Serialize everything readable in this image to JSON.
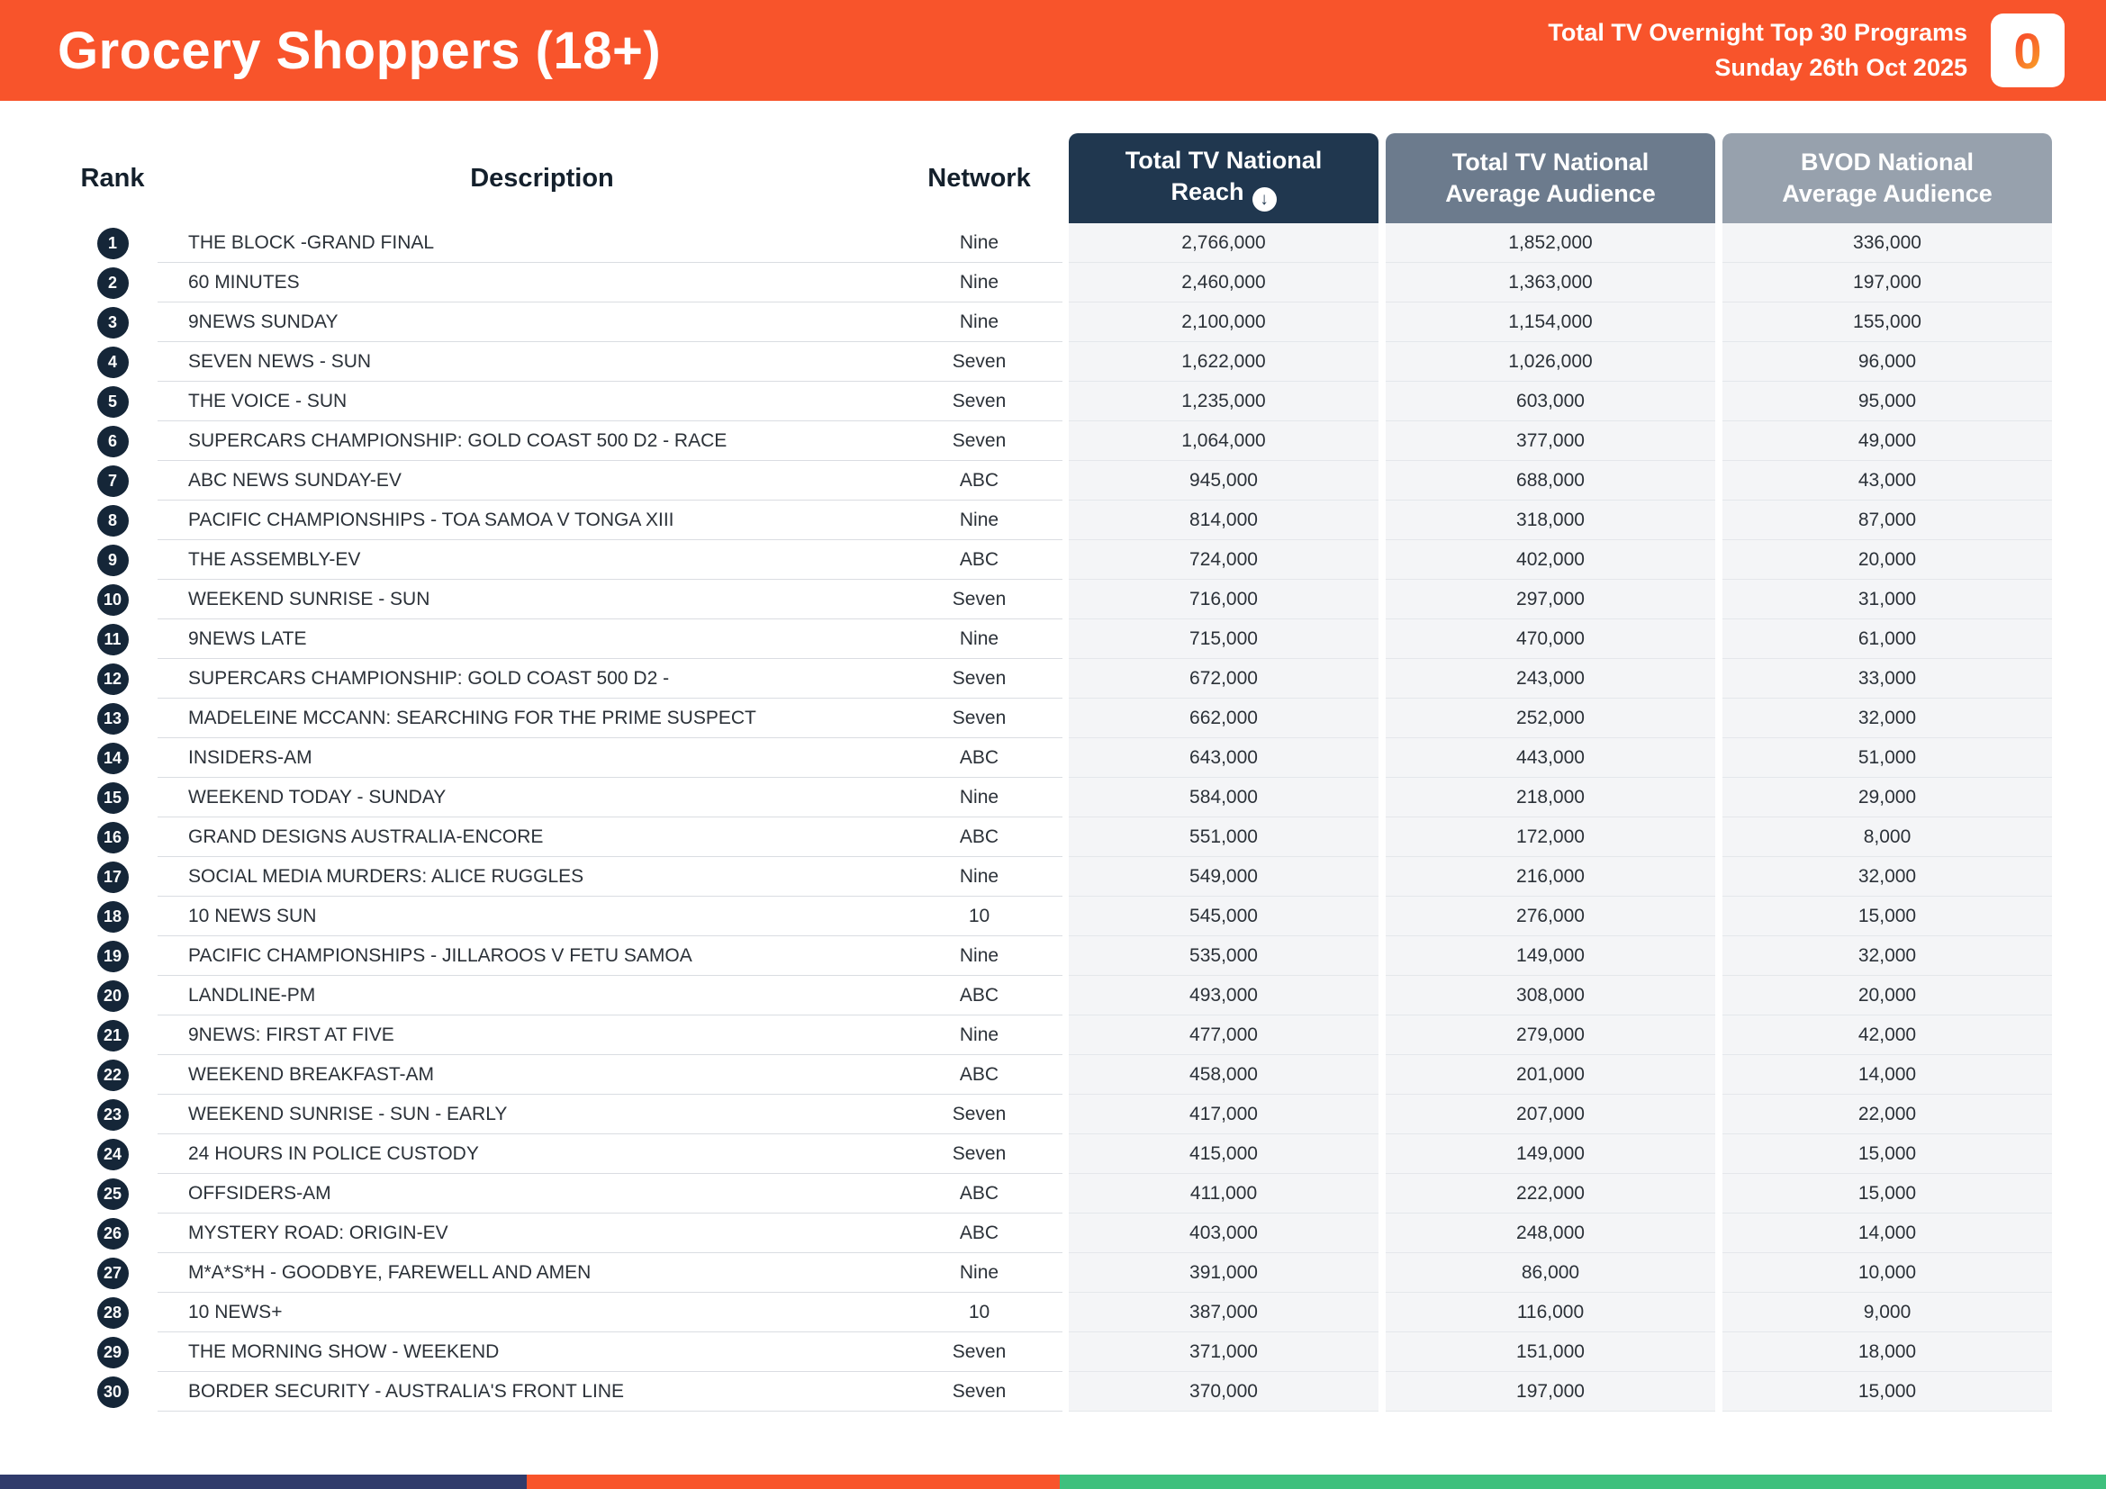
{
  "header": {
    "title": "Grocery Shoppers (18+)",
    "report_title": "Total TV Overnight Top 30 Programs",
    "report_date": "Sunday 26th Oct 2025",
    "logo_glyph": "0"
  },
  "colors": {
    "header_bg": "#F8542B",
    "reach_header_bg": "#20374F",
    "avg_header_bg": "#6C7B8D",
    "bvod_header_bg": "#97A1AD",
    "rank_badge_bg": "#152638",
    "numeric_col_bg": "#F4F5F7",
    "footer_navy": "#303B6B",
    "footer_orange": "#F8542B",
    "footer_green": "#3EC07D"
  },
  "table": {
    "headers": {
      "rank": "Rank",
      "description": "Description",
      "network": "Network",
      "reach": "Total TV National Reach",
      "avg": "Total TV National Average Audience",
      "bvod": "BVOD National Average Audience"
    },
    "sort": {
      "column": "reach",
      "direction": "descending",
      "icon": "↓"
    },
    "rows": [
      {
        "rank": "1",
        "description": "THE BLOCK -GRAND FINAL",
        "network": "Nine",
        "reach": "2,766,000",
        "avg": "1,852,000",
        "bvod": "336,000"
      },
      {
        "rank": "2",
        "description": "60 MINUTES",
        "network": "Nine",
        "reach": "2,460,000",
        "avg": "1,363,000",
        "bvod": "197,000"
      },
      {
        "rank": "3",
        "description": "9NEWS SUNDAY",
        "network": "Nine",
        "reach": "2,100,000",
        "avg": "1,154,000",
        "bvod": "155,000"
      },
      {
        "rank": "4",
        "description": "SEVEN NEWS - SUN",
        "network": "Seven",
        "reach": "1,622,000",
        "avg": "1,026,000",
        "bvod": "96,000"
      },
      {
        "rank": "5",
        "description": "THE VOICE - SUN",
        "network": "Seven",
        "reach": "1,235,000",
        "avg": "603,000",
        "bvod": "95,000"
      },
      {
        "rank": "6",
        "description": "SUPERCARS CHAMPIONSHIP: GOLD COAST 500 D2 - RACE",
        "network": "Seven",
        "reach": "1,064,000",
        "avg": "377,000",
        "bvod": "49,000"
      },
      {
        "rank": "7",
        "description": "ABC NEWS SUNDAY-EV",
        "network": "ABC",
        "reach": "945,000",
        "avg": "688,000",
        "bvod": "43,000"
      },
      {
        "rank": "8",
        "description": "PACIFIC CHAMPIONSHIPS - TOA SAMOA V TONGA XIII",
        "network": "Nine",
        "reach": "814,000",
        "avg": "318,000",
        "bvod": "87,000"
      },
      {
        "rank": "9",
        "description": "THE ASSEMBLY-EV",
        "network": "ABC",
        "reach": "724,000",
        "avg": "402,000",
        "bvod": "20,000"
      },
      {
        "rank": "10",
        "description": "WEEKEND SUNRISE - SUN",
        "network": "Seven",
        "reach": "716,000",
        "avg": "297,000",
        "bvod": "31,000"
      },
      {
        "rank": "11",
        "description": "9NEWS LATE",
        "network": "Nine",
        "reach": "715,000",
        "avg": "470,000",
        "bvod": "61,000"
      },
      {
        "rank": "12",
        "description": "SUPERCARS CHAMPIONSHIP: GOLD COAST 500 D2 -",
        "network": "Seven",
        "reach": "672,000",
        "avg": "243,000",
        "bvod": "33,000"
      },
      {
        "rank": "13",
        "description": "MADELEINE MCCANN: SEARCHING FOR THE PRIME SUSPECT",
        "network": "Seven",
        "reach": "662,000",
        "avg": "252,000",
        "bvod": "32,000"
      },
      {
        "rank": "14",
        "description": "INSIDERS-AM",
        "network": "ABC",
        "reach": "643,000",
        "avg": "443,000",
        "bvod": "51,000"
      },
      {
        "rank": "15",
        "description": "WEEKEND TODAY - SUNDAY",
        "network": "Nine",
        "reach": "584,000",
        "avg": "218,000",
        "bvod": "29,000"
      },
      {
        "rank": "16",
        "description": "GRAND DESIGNS AUSTRALIA-ENCORE",
        "network": "ABC",
        "reach": "551,000",
        "avg": "172,000",
        "bvod": "8,000"
      },
      {
        "rank": "17",
        "description": "SOCIAL MEDIA MURDERS:  ALICE RUGGLES",
        "network": "Nine",
        "reach": "549,000",
        "avg": "216,000",
        "bvod": "32,000"
      },
      {
        "rank": "18",
        "description": "10 NEWS SUN",
        "network": "10",
        "reach": "545,000",
        "avg": "276,000",
        "bvod": "15,000"
      },
      {
        "rank": "19",
        "description": "PACIFIC CHAMPIONSHIPS - JILLAROOS V FETU SAMOA",
        "network": "Nine",
        "reach": "535,000",
        "avg": "149,000",
        "bvod": "32,000"
      },
      {
        "rank": "20",
        "description": "LANDLINE-PM",
        "network": "ABC",
        "reach": "493,000",
        "avg": "308,000",
        "bvod": "20,000"
      },
      {
        "rank": "21",
        "description": "9NEWS: FIRST AT FIVE",
        "network": "Nine",
        "reach": "477,000",
        "avg": "279,000",
        "bvod": "42,000"
      },
      {
        "rank": "22",
        "description": "WEEKEND BREAKFAST-AM",
        "network": "ABC",
        "reach": "458,000",
        "avg": "201,000",
        "bvod": "14,000"
      },
      {
        "rank": "23",
        "description": "WEEKEND SUNRISE - SUN - EARLY",
        "network": "Seven",
        "reach": "417,000",
        "avg": "207,000",
        "bvod": "22,000"
      },
      {
        "rank": "24",
        "description": "24 HOURS IN POLICE CUSTODY",
        "network": "Seven",
        "reach": "415,000",
        "avg": "149,000",
        "bvod": "15,000"
      },
      {
        "rank": "25",
        "description": "OFFSIDERS-AM",
        "network": "ABC",
        "reach": "411,000",
        "avg": "222,000",
        "bvod": "15,000"
      },
      {
        "rank": "26",
        "description": "MYSTERY ROAD: ORIGIN-EV",
        "network": "ABC",
        "reach": "403,000",
        "avg": "248,000",
        "bvod": "14,000"
      },
      {
        "rank": "27",
        "description": "M*A*S*H - GOODBYE, FAREWELL AND AMEN",
        "network": "Nine",
        "reach": "391,000",
        "avg": "86,000",
        "bvod": "10,000"
      },
      {
        "rank": "28",
        "description": "10 NEWS+",
        "network": "10",
        "reach": "387,000",
        "avg": "116,000",
        "bvod": "9,000"
      },
      {
        "rank": "29",
        "description": "THE MORNING SHOW - WEEKEND",
        "network": "Seven",
        "reach": "371,000",
        "avg": "151,000",
        "bvod": "18,000"
      },
      {
        "rank": "30",
        "description": "BORDER SECURITY - AUSTRALIA'S FRONT LINE",
        "network": "Seven",
        "reach": "370,000",
        "avg": "197,000",
        "bvod": "15,000"
      }
    ]
  }
}
